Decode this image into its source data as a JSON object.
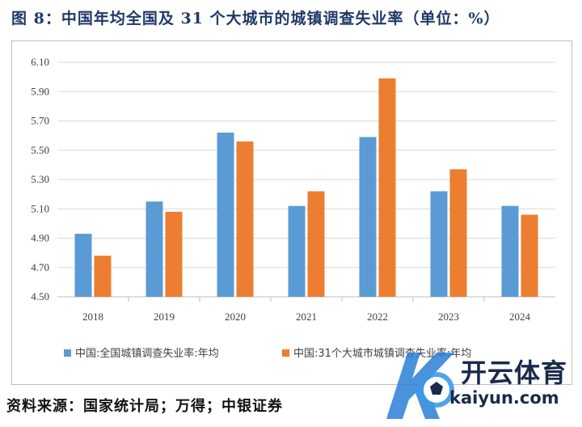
{
  "title": "图 8：中国年均全国及 31 个大城市的城镇调查失业率（单位：%）",
  "source": "资料来源：国家统计局；万得；中银证券",
  "watermark": {
    "cn": "开云体育",
    "en": "kaiyun.com"
  },
  "colors": {
    "series1": "#5b9bd5",
    "series2": "#ed7d31",
    "grid": "#d9d9d9",
    "axis": "#bfbfbf"
  },
  "chart_data": {
    "type": "bar",
    "categories": [
      "2018",
      "2019",
      "2020",
      "2021",
      "2022",
      "2023",
      "2024"
    ],
    "series": [
      {
        "name": "中国:全国城镇调查失业率:年均",
        "values": [
          4.93,
          5.15,
          5.62,
          5.12,
          5.59,
          5.22,
          5.12
        ]
      },
      {
        "name": "中国:31个大城市城镇调查失业率:年均",
        "values": [
          4.78,
          5.08,
          5.56,
          5.22,
          5.99,
          5.37,
          5.06
        ]
      }
    ],
    "ylim": [
      4.5,
      6.1
    ],
    "yticks": [
      "4.50",
      "4.70",
      "4.90",
      "5.10",
      "5.30",
      "5.50",
      "5.70",
      "5.90",
      "6.10"
    ],
    "grid": true,
    "legend": "bottom"
  }
}
